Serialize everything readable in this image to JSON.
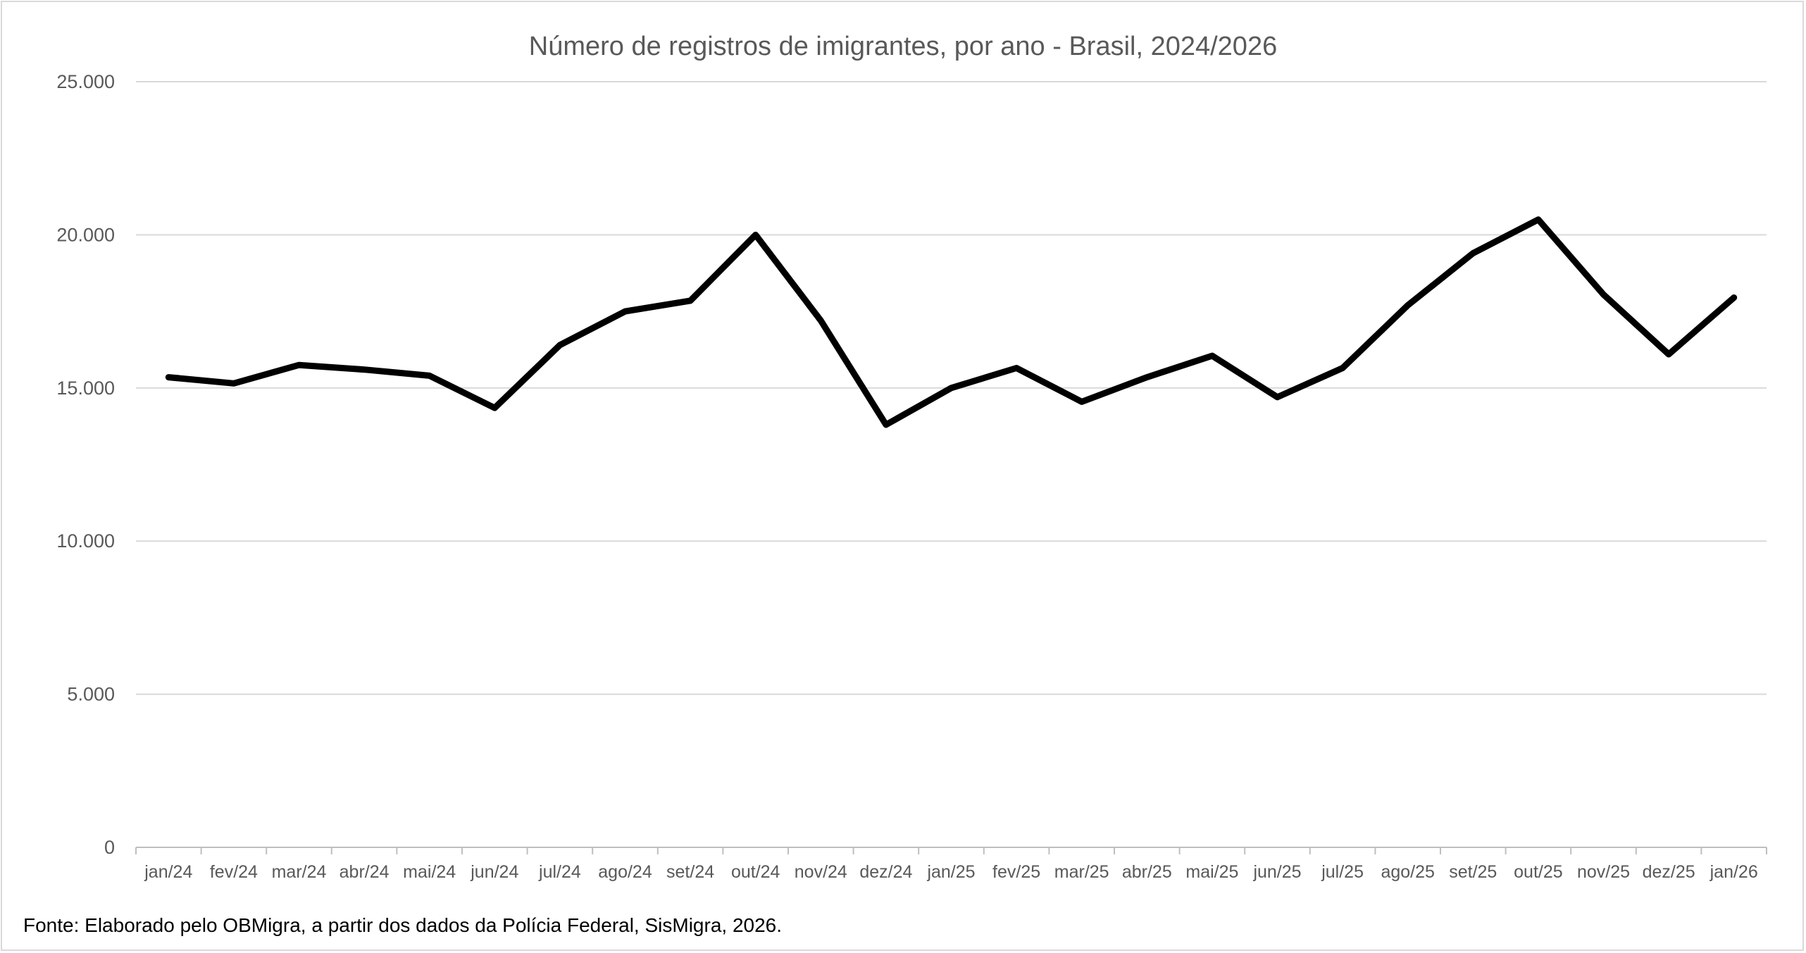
{
  "chart_data": {
    "type": "line",
    "title": "Número de registros de imigrantes, por ano - Brasil, 2024/2026",
    "xlabel": "",
    "ylabel": "",
    "ylim": [
      0,
      25000
    ],
    "yticks": [
      0,
      5000,
      10000,
      15000,
      20000,
      25000
    ],
    "ytick_labels": [
      "0",
      "5.000",
      "10.000",
      "15.000",
      "20.000",
      "25.000"
    ],
    "grid": true,
    "legend": "none",
    "categories": [
      "jan/24",
      "fev/24",
      "mar/24",
      "abr/24",
      "mai/24",
      "jun/24",
      "jul/24",
      "ago/24",
      "set/24",
      "out/24",
      "nov/24",
      "dez/24",
      "jan/25",
      "fev/25",
      "mar/25",
      "abr/25",
      "mai/25",
      "jun/25",
      "jul/25",
      "ago/25",
      "set/25",
      "out/25",
      "nov/25",
      "dez/25",
      "jan/26"
    ],
    "series": [
      {
        "name": "Registros",
        "color": "#000000",
        "values": [
          15350,
          15150,
          15750,
          15600,
          15400,
          14350,
          16400,
          17500,
          17850,
          20000,
          17200,
          13800,
          15000,
          15650,
          14550,
          15350,
          16050,
          14700,
          15650,
          17700,
          19400,
          20500,
          18050,
          16100,
          17950
        ]
      }
    ]
  },
  "source_note": "Fonte: Elaborado pelo OBMigra, a partir dos dados da Polícia Federal, SisMigra, 2026."
}
